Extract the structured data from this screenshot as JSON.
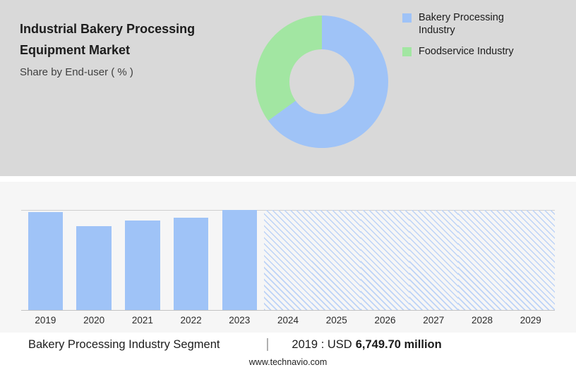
{
  "header": {
    "title_line1": "Industrial Bakery Processing",
    "title_line2": "Equipment Market",
    "subtitle": "Share by End-user ( % )"
  },
  "legend": [
    {
      "label": "Bakery Processing Industry",
      "color": "#9fc3f7"
    },
    {
      "label": "Foodservice Industry",
      "color": "#a2e6a2"
    }
  ],
  "chart_data": [
    {
      "type": "pie",
      "subtype": "donut",
      "title": "Share by End-user ( % )",
      "labels": [
        "Bakery Processing Industry",
        "Foodservice Industry"
      ],
      "values": [
        65,
        35
      ],
      "values_estimated": true,
      "colors": [
        "#9fc3f7",
        "#a2e6a2"
      ],
      "legend_position": "right"
    },
    {
      "type": "bar",
      "categories": [
        "2019",
        "2020",
        "2021",
        "2022",
        "2023",
        "2024",
        "2025",
        "2026",
        "2027",
        "2028",
        "2029"
      ],
      "values": [
        6749.7,
        5800,
        6150,
        6350,
        6880,
        null,
        null,
        null,
        null,
        null,
        null
      ],
      "values_estimated": true,
      "ymax": 6900,
      "ylabel": "USD million",
      "bar_color": "#9fc3f7",
      "hatch_color": "#bdd3f7",
      "forecast_years": [
        "2024",
        "2025",
        "2026",
        "2027",
        "2028",
        "2029"
      ],
      "forecast_style": "full-height diagonal hatch",
      "grid": false,
      "legend_position": "none"
    }
  ],
  "footer": {
    "segment_label": "Bakery Processing Industry Segment",
    "separator": "|",
    "value_prefix": "2019 : USD",
    "value_bold": "6,749.70 million",
    "website": "www.technavio.com"
  },
  "colors": {
    "header_background": "#d9d9d9",
    "chart_background": "#f6f6f6",
    "accent_blue": "#9fc3f7",
    "accent_green": "#a2e6a2"
  }
}
